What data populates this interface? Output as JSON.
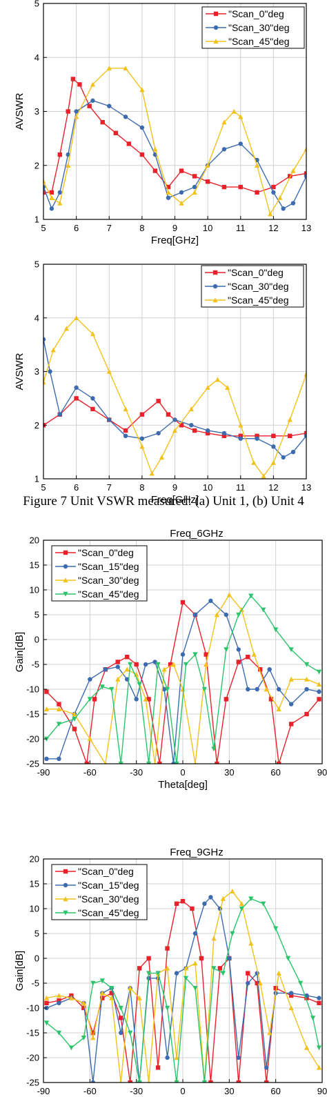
{
  "caption": "Figure 7 Unit VSWR measured: (a) Unit 1, (b) Unit 4",
  "colors": {
    "red": "#e8212a",
    "blue": "#3c6bb0",
    "yellow": "#f2c21a",
    "green": "#2bc46a"
  },
  "chart_data": [
    {
      "type": "line",
      "title": "",
      "xlabel": "Freq[GHz]",
      "ylabel": "AVSWR",
      "xlim": [
        5,
        13
      ],
      "ylim": [
        1,
        5
      ],
      "xticks": [
        "5",
        "6",
        "7",
        "8",
        "9",
        "10",
        "11",
        "12",
        "13"
      ],
      "yticks": [
        "1",
        "2",
        "3",
        "4",
        "5"
      ],
      "grid": true,
      "legend": "top-right",
      "series": [
        {
          "name": "\"Scan_0\"deg",
          "color": "#e8212a",
          "marker": "square",
          "x": [
            5,
            5.25,
            5.5,
            5.75,
            5.9,
            6.1,
            6.4,
            6.8,
            7.2,
            7.6,
            8.0,
            8.4,
            8.8,
            9.2,
            9.6,
            10.0,
            10.5,
            11.0,
            11.5,
            12.0,
            12.5,
            13
          ],
          "y": [
            1.5,
            1.5,
            2.2,
            3.0,
            3.6,
            3.5,
            3.1,
            2.8,
            2.6,
            2.4,
            2.2,
            1.9,
            1.6,
            1.9,
            1.8,
            1.7,
            1.6,
            1.6,
            1.5,
            1.6,
            1.8,
            1.85
          ]
        },
        {
          "name": "\"Scan_30\"deg",
          "color": "#3c6bb0",
          "marker": "circle",
          "x": [
            5,
            5.25,
            5.5,
            5.75,
            6.0,
            6.5,
            7.0,
            7.5,
            8.0,
            8.4,
            8.8,
            9.2,
            9.6,
            10.0,
            10.5,
            11.0,
            11.5,
            12.0,
            12.3,
            12.6,
            13
          ],
          "y": [
            1.6,
            1.2,
            1.5,
            2.2,
            3.0,
            3.2,
            3.1,
            2.9,
            2.7,
            2.2,
            1.4,
            1.5,
            1.6,
            2.0,
            2.3,
            2.4,
            2.1,
            1.5,
            1.2,
            1.3,
            1.8
          ]
        },
        {
          "name": "\"Scan_45\"deg",
          "color": "#f2c21a",
          "marker": "triangle",
          "x": [
            5,
            5.25,
            5.5,
            5.75,
            6.0,
            6.5,
            7.0,
            7.5,
            8.0,
            8.4,
            8.8,
            9.2,
            9.6,
            10.0,
            10.5,
            10.8,
            11.0,
            11.5,
            11.9,
            12.2,
            12.6,
            13
          ],
          "y": [
            1.7,
            1.4,
            1.3,
            2.0,
            2.9,
            3.5,
            3.8,
            3.8,
            3.4,
            2.3,
            1.5,
            1.3,
            1.5,
            2.0,
            2.8,
            3.0,
            2.9,
            2.0,
            1.1,
            1.4,
            1.9,
            2.3
          ]
        }
      ]
    },
    {
      "type": "line",
      "title": "",
      "xlabel": "Freq[GHz]",
      "ylabel": "AVSWR",
      "xlim": [
        5,
        13
      ],
      "ylim": [
        1,
        5
      ],
      "xticks": [
        "5",
        "6",
        "7",
        "8",
        "9",
        "10",
        "11",
        "12",
        "13"
      ],
      "yticks": [
        "1",
        "2",
        "3",
        "4",
        "5"
      ],
      "grid": true,
      "legend": "top-right",
      "series": [
        {
          "name": "\"Scan_0\"deg",
          "color": "#e8212a",
          "marker": "square",
          "x": [
            5,
            5.5,
            6.0,
            6.5,
            7.0,
            7.5,
            8.0,
            8.5,
            8.8,
            9.2,
            9.6,
            10.0,
            10.5,
            11.0,
            11.5,
            12.0,
            12.5,
            13
          ],
          "y": [
            2.0,
            2.2,
            2.5,
            2.3,
            2.1,
            1.9,
            2.2,
            2.45,
            2.2,
            2.0,
            1.9,
            1.85,
            1.8,
            1.8,
            1.8,
            1.8,
            1.8,
            1.85
          ]
        },
        {
          "name": "\"Scan_30\"deg",
          "color": "#3c6bb0",
          "marker": "circle",
          "x": [
            5,
            5.2,
            5.5,
            6.0,
            6.5,
            7.0,
            7.5,
            8.0,
            8.5,
            9.0,
            9.5,
            10.0,
            10.5,
            11.0,
            11.5,
            12.0,
            12.3,
            12.6,
            13
          ],
          "y": [
            3.6,
            3.0,
            2.2,
            2.7,
            2.5,
            2.1,
            1.8,
            1.75,
            1.85,
            2.1,
            2.0,
            1.9,
            1.85,
            1.75,
            1.75,
            1.6,
            1.4,
            1.5,
            1.8
          ]
        },
        {
          "name": "\"Scan_45\"deg",
          "color": "#f2c21a",
          "marker": "triangle",
          "x": [
            5,
            5.3,
            5.7,
            6.0,
            6.5,
            7.0,
            7.5,
            8.0,
            8.3,
            8.6,
            9.0,
            9.5,
            10.0,
            10.3,
            10.6,
            11.0,
            11.4,
            11.7,
            12.0,
            12.5,
            13
          ],
          "y": [
            2.8,
            3.4,
            3.8,
            4.0,
            3.7,
            3.0,
            2.3,
            1.6,
            1.1,
            1.4,
            1.9,
            2.3,
            2.7,
            2.85,
            2.7,
            2.0,
            1.3,
            1.05,
            1.3,
            2.1,
            2.95
          ]
        }
      ]
    },
    {
      "type": "line",
      "title": "Freq_6GHz",
      "xlabel": "Theta[deg]",
      "ylabel": "Gain[dB]",
      "xlim": [
        -90,
        90
      ],
      "ylim": [
        -25,
        20
      ],
      "xticks": [
        "-90",
        "-60",
        "-30",
        "0",
        "30",
        "60",
        "90"
      ],
      "yticks": [
        "-25",
        "-20",
        "-15",
        "-10",
        "-5",
        "0",
        "5",
        "10",
        "15",
        "20"
      ],
      "grid": true,
      "legend": "top-left",
      "series": [
        {
          "name": "\"Scan_0\"deg",
          "color": "#e8212a",
          "marker": "square",
          "x": [
            -88,
            -80,
            -70,
            -62,
            -57,
            -50,
            -42,
            -36,
            -30,
            -22,
            -15,
            -8,
            0,
            8,
            15,
            22,
            28,
            36,
            42,
            50,
            57,
            62,
            70,
            80,
            88
          ],
          "y": [
            -10.5,
            -13,
            -18,
            -25,
            -12,
            -6,
            -4.5,
            -3.5,
            -5,
            -12,
            -25,
            -5,
            7.5,
            5,
            -3,
            -25,
            -12,
            -4.5,
            -3.5,
            -6,
            -12,
            -25,
            -17,
            -15,
            -12
          ]
        },
        {
          "name": "\"Scan_15\"deg",
          "color": "#3c6bb0",
          "marker": "circle",
          "x": [
            -88,
            -80,
            -70,
            -60,
            -50,
            -42,
            -36,
            -30,
            -24,
            -18,
            -12,
            -6,
            0,
            8,
            18,
            28,
            36,
            42,
            48,
            56,
            62,
            70,
            80,
            88
          ],
          "y": [
            -24,
            -24,
            -15,
            -8,
            -6,
            -5.5,
            -8,
            -12,
            -5,
            -4.5,
            -10,
            -25,
            -3,
            5,
            7.8,
            5,
            -2,
            -10,
            -10,
            -6,
            -10,
            -13,
            -10,
            -10.5
          ]
        },
        {
          "name": "\"Scan_30\"deg",
          "color": "#f2c21a",
          "marker": "triangle",
          "x": [
            -88,
            -80,
            -70,
            -60,
            -50,
            -42,
            -36,
            -30,
            -24,
            -18,
            -12,
            -6,
            0,
            8,
            15,
            22,
            30,
            38,
            46,
            54,
            62,
            70,
            80,
            88
          ],
          "y": [
            -14,
            -14,
            -15,
            -20,
            -25,
            -8,
            -6,
            -7,
            -12,
            -25,
            -6,
            -5,
            -10,
            -25,
            -5,
            5,
            9,
            6,
            -3,
            -10,
            -14,
            -8,
            -8,
            -9
          ]
        },
        {
          "name": "\"Scan_45\"deg",
          "color": "#2bc46a",
          "marker": "triangle-down",
          "x": [
            -88,
            -80,
            -70,
            -60,
            -52,
            -46,
            -40,
            -34,
            -28,
            -22,
            -16,
            -10,
            -4,
            2,
            8,
            14,
            20,
            28,
            36,
            44,
            52,
            60,
            70,
            80,
            88
          ],
          "y": [
            -20,
            -17,
            -16,
            -12,
            -9.5,
            -10,
            -25,
            -5,
            -9,
            -25,
            -5,
            -10,
            -25,
            -5,
            -3,
            -10,
            -22,
            -2,
            5,
            8.8,
            6,
            2,
            -2,
            -5,
            -6.5
          ]
        }
      ]
    },
    {
      "type": "line",
      "title": "Freq_9GHz",
      "xlabel": "Theta[deg]",
      "ylabel": "Gain[dB]",
      "xlim": [
        -90,
        90
      ],
      "ylim": [
        -25,
        20
      ],
      "xticks": [
        "-90",
        "-60",
        "-30",
        "0",
        "30",
        "60",
        "90"
      ],
      "yticks": [
        "-25",
        "-20",
        "-15",
        "-10",
        "-5",
        "0",
        "5",
        "10",
        "15",
        "20"
      ],
      "grid": true,
      "legend": "top-left",
      "series": [
        {
          "name": "\"Scan_0\"deg",
          "color": "#e8212a",
          "marker": "square",
          "x": [
            -88,
            -80,
            -72,
            -64,
            -58,
            -52,
            -46,
            -40,
            -34,
            -28,
            -22,
            -16,
            -10,
            -4,
            0,
            6,
            12,
            18,
            24,
            30,
            36,
            42,
            48,
            54,
            60,
            70,
            80,
            88
          ],
          "y": [
            -9,
            -8.5,
            -7.5,
            -10,
            -15,
            -8,
            -7,
            -12,
            -25,
            -2,
            0,
            -22,
            2,
            11,
            11.5,
            10,
            0,
            -25,
            -2,
            0,
            -25,
            -3,
            -5,
            -25,
            -6,
            -7.5,
            -8,
            -9
          ]
        },
        {
          "name": "\"Scan_15\"deg",
          "color": "#3c6bb0",
          "marker": "circle",
          "x": [
            -88,
            -80,
            -72,
            -64,
            -58,
            -52,
            -46,
            -40,
            -34,
            -28,
            -22,
            -16,
            -10,
            -4,
            2,
            8,
            14,
            18,
            24,
            30,
            36,
            42,
            48,
            54,
            60,
            70,
            80,
            88
          ],
          "y": [
            -10,
            -9,
            -8,
            -9,
            -25,
            -7,
            -6,
            -15,
            -6,
            -25,
            -4,
            -4,
            -20,
            -3,
            -2,
            5,
            11,
            12.3,
            10,
            0,
            -20,
            -5,
            -3,
            -22,
            -7,
            -7,
            -7.5,
            -8
          ]
        },
        {
          "name": "\"Scan_30\"deg",
          "color": "#f2c21a",
          "marker": "triangle",
          "x": [
            -88,
            -80,
            -72,
            -64,
            -58,
            -52,
            -46,
            -40,
            -34,
            -28,
            -22,
            -16,
            -10,
            -4,
            2,
            8,
            14,
            20,
            26,
            32,
            38,
            44,
            50,
            56,
            62,
            70,
            80,
            88
          ],
          "y": [
            -8,
            -7.5,
            -8,
            -9,
            -16,
            -7,
            -8,
            -25,
            -6,
            -8,
            -25,
            -3,
            -2,
            -20,
            -2,
            -1,
            -25,
            4,
            12,
            13.5,
            11,
            3,
            -5,
            -15,
            -3,
            -10,
            -18,
            -22
          ]
        },
        {
          "name": "\"Scan_45\"deg",
          "color": "#2bc46a",
          "marker": "triangle-down",
          "x": [
            -88,
            -80,
            -72,
            -64,
            -58,
            -52,
            -46,
            -40,
            -34,
            -28,
            -22,
            -16,
            -10,
            -4,
            2,
            8,
            14,
            20,
            26,
            32,
            38,
            44,
            52,
            60,
            68,
            76,
            84,
            88
          ],
          "y": [
            -13,
            -15,
            -18,
            -16,
            -5,
            -4.5,
            -6,
            -10,
            -15,
            -25,
            -3,
            -3,
            -10,
            -25,
            -4,
            -6,
            -25,
            -2,
            -3,
            5,
            10,
            12,
            11,
            6,
            0,
            -5,
            -12,
            -18
          ]
        }
      ]
    }
  ]
}
